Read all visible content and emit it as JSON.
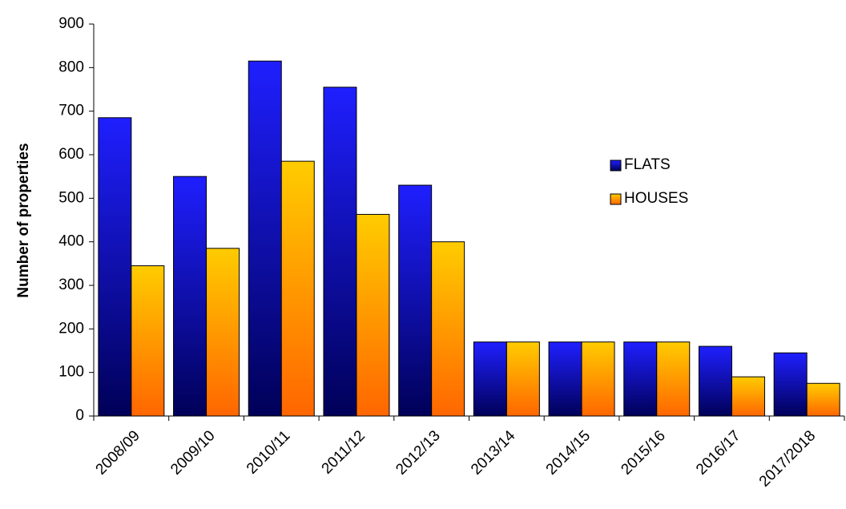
{
  "chart_data": {
    "type": "bar",
    "y_label": "Number of properties",
    "categories": [
      "2008/09",
      "2009/10",
      "2010/11",
      "2011/12",
      "2012/13",
      "2013/14",
      "2014/15",
      "2015/16",
      "2016/17",
      "2017/2018"
    ],
    "series": [
      {
        "name": "FLATS",
        "color": "#1f1fff",
        "gradient_color": "#000058",
        "values": [
          685,
          550,
          815,
          755,
          530,
          170,
          170,
          170,
          160,
          145
        ]
      },
      {
        "name": "HOUSES",
        "color": "#ffcc00",
        "gradient_color": "#ff6600",
        "values": [
          345,
          385,
          585,
          463,
          400,
          170,
          170,
          170,
          90,
          75
        ]
      }
    ],
    "ylim": [
      0,
      900
    ],
    "yticks": [
      0,
      100,
      200,
      300,
      400,
      500,
      600,
      700,
      800,
      900
    ],
    "grid": false
  }
}
